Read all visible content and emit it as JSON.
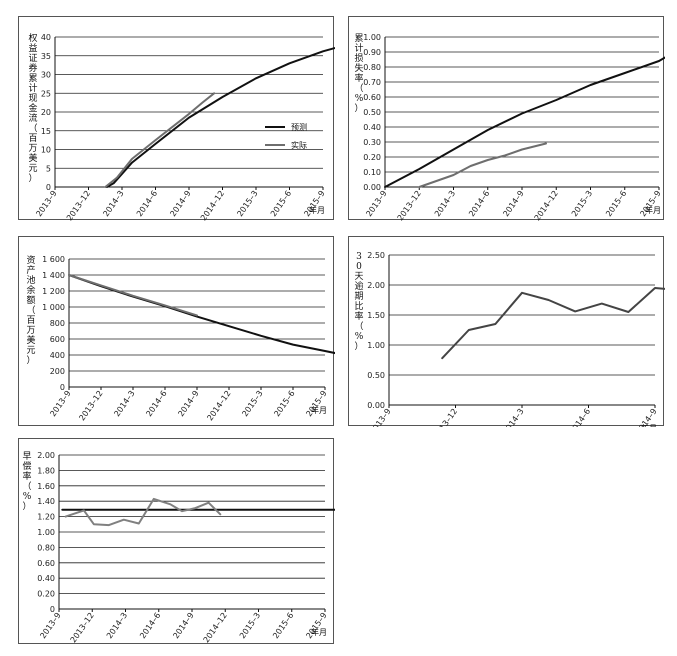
{
  "chart_data": [
    {
      "type": "line",
      "ylabel": "权益证券累计现金流（百万美元）",
      "x_unit": "年月",
      "categories": [
        "2013–9",
        "2013–12",
        "2014–3",
        "2014–6",
        "2014–9",
        "2014–12",
        "2015–3",
        "2015–6",
        "2015–9"
      ],
      "ylim": [
        0,
        40
      ],
      "yticks": [
        "0",
        "5",
        "10",
        "15",
        "20",
        "25",
        "30",
        "35",
        "40"
      ],
      "legend": {
        "placement": "right-middle",
        "items": [
          "预测",
          "实际"
        ]
      },
      "grid": true,
      "series": [
        {
          "name": "预测",
          "color": "#111111",
          "points": [
            [
              1.55,
              0
            ],
            [
              1.75,
              1
            ],
            [
              2.3,
              6.5
            ],
            [
              3,
              11.5
            ],
            [
              4,
              18.5
            ],
            [
              5,
              24
            ],
            [
              6,
              29
            ],
            [
              7,
              33
            ],
            [
              8,
              36.2
            ],
            [
              8.65,
              37.8
            ]
          ]
        },
        {
          "name": "实际",
          "color": "#6e6e6e",
          "points": [
            [
              1.5,
              0
            ],
            [
              1.85,
              2.5
            ],
            [
              2.3,
              7.5
            ],
            [
              3,
              12.5
            ],
            [
              4,
              19.5
            ],
            [
              4.4,
              22.5
            ],
            [
              4.75,
              25
            ]
          ]
        }
      ]
    },
    {
      "type": "line",
      "ylabel": "累计损失率（%）",
      "x_unit": "年月",
      "categories": [
        "2013–9",
        "2013–12",
        "2014–3",
        "2014–6",
        "2014–9",
        "2014–12",
        "2015–3",
        "2015–6",
        "2015–9"
      ],
      "ylim": [
        0,
        1
      ],
      "yticks": [
        "0.00",
        "0.10",
        "0.20",
        "0.30",
        "0.40",
        "0.50",
        "0.60",
        "0.70",
        "0.80",
        "0.90",
        "1.00"
      ],
      "grid": true,
      "series": [
        {
          "color": "#111111",
          "points": [
            [
              0,
              0
            ],
            [
              1,
              0.12
            ],
            [
              2,
              0.25
            ],
            [
              3,
              0.38
            ],
            [
              4,
              0.49
            ],
            [
              5,
              0.58
            ],
            [
              6,
              0.68
            ],
            [
              7,
              0.76
            ],
            [
              8,
              0.84
            ],
            [
              8.6,
              0.92
            ]
          ]
        },
        {
          "color": "#6e6e6e",
          "points": [
            [
              1,
              0
            ],
            [
              2,
              0.08
            ],
            [
              2.5,
              0.14
            ],
            [
              3,
              0.18
            ],
            [
              3.5,
              0.21
            ],
            [
              4,
              0.25
            ],
            [
              4.7,
              0.29
            ]
          ]
        }
      ]
    },
    {
      "type": "line",
      "ylabel": "资产池余额（百万美元）",
      "x_unit": "年月",
      "categories": [
        "2013–9",
        "2013–12",
        "2014–3",
        "2014–6",
        "2014–9",
        "2014–12",
        "2015–3",
        "2015–6",
        "2015–9"
      ],
      "ylim": [
        0,
        1600
      ],
      "yticks": [
        "0",
        "200",
        "400",
        "600",
        "800",
        "1 000",
        "1 200",
        "1 400",
        "1 600"
      ],
      "grid": true,
      "series": [
        {
          "color": "#111111",
          "points": [
            [
              0,
              1400
            ],
            [
              1,
              1260
            ],
            [
              2,
              1130
            ],
            [
              3,
              1010
            ],
            [
              4,
              880
            ],
            [
              5,
              760
            ],
            [
              6,
              640
            ],
            [
              7,
              530
            ],
            [
              8,
              450
            ],
            [
              8.6,
              400
            ]
          ]
        },
        {
          "color": "#6e6e6e",
          "points": [
            [
              0,
              1400
            ],
            [
              1,
              1270
            ],
            [
              2,
              1140
            ],
            [
              3,
              1020
            ],
            [
              4,
              895
            ]
          ]
        }
      ]
    },
    {
      "type": "line",
      "ylabel": "30天逾期比率（%）",
      "x_unit": "年月",
      "categories": [
        "2013–9",
        "2013–12",
        "2014–3",
        "2014–6",
        "2014–9"
      ],
      "ylim": [
        0,
        2.5
      ],
      "yticks": [
        "0.00",
        "0.50",
        "1.00",
        "1.50",
        "2.00",
        "2.50"
      ],
      "grid": true,
      "series": [
        {
          "color": "#444444",
          "points": [
            [
              0.8,
              0.78
            ],
            [
              1.2,
              1.25
            ],
            [
              1.6,
              1.35
            ],
            [
              2,
              1.87
            ],
            [
              2.4,
              1.75
            ],
            [
              2.8,
              1.56
            ],
            [
              3.2,
              1.69
            ],
            [
              3.6,
              1.55
            ],
            [
              4,
              1.95
            ],
            [
              4.4,
              1.91
            ],
            [
              4.8,
              2.02
            ],
            [
              5.2,
              2.26
            ]
          ]
        }
      ]
    },
    {
      "type": "line",
      "ylabel": "早偿率（%）",
      "x_unit": "年月",
      "categories": [
        "2013–9",
        "2013–12",
        "2014–3",
        "2014–6",
        "2014–9",
        "2014–12",
        "2015–3",
        "2015–6",
        "2015–9"
      ],
      "ylim": [
        0,
        2
      ],
      "yticks": [
        "0",
        "0.20",
        "0.40",
        "0.60",
        "0.80",
        "1.00",
        "1.20",
        "1.40",
        "1.60",
        "1.80",
        "2.00"
      ],
      "grid": true,
      "series": [
        {
          "color": "#111111",
          "points": [
            [
              0.1,
              1.29
            ],
            [
              8.65,
              1.29
            ]
          ]
        },
        {
          "color": "#808080",
          "points": [
            [
              0.2,
              1.2
            ],
            [
              0.75,
              1.28
            ],
            [
              1.05,
              1.1
            ],
            [
              1.5,
              1.09
            ],
            [
              1.95,
              1.16
            ],
            [
              2.4,
              1.11
            ],
            [
              2.85,
              1.43
            ],
            [
              3.35,
              1.36
            ],
            [
              3.7,
              1.27
            ],
            [
              4.1,
              1.31
            ],
            [
              4.5,
              1.38
            ],
            [
              4.85,
              1.23
            ]
          ]
        }
      ]
    }
  ]
}
